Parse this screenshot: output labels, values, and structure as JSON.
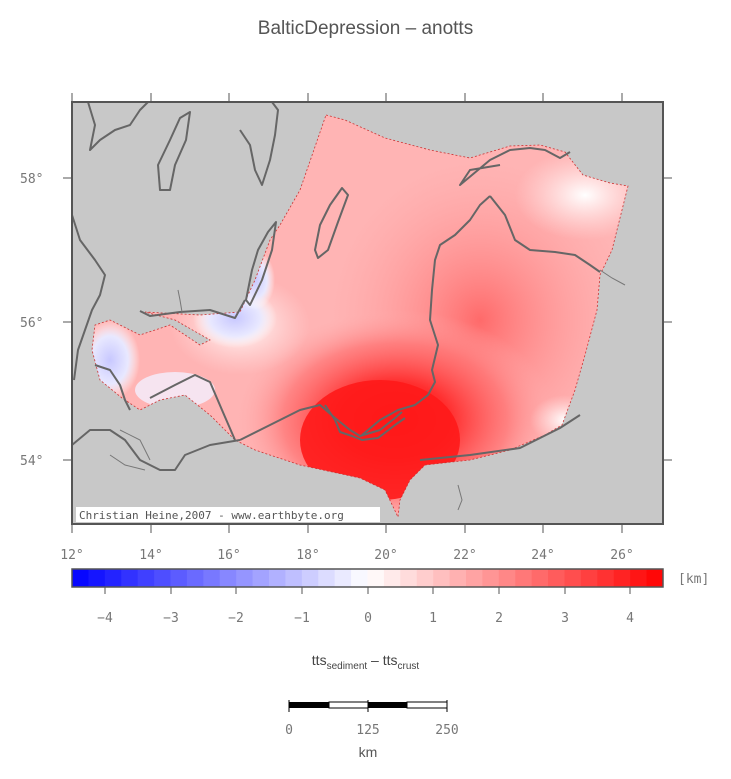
{
  "title": "BalticDepression – anotts",
  "map": {
    "lat_ticks": [
      "58°",
      "56°",
      "54°"
    ],
    "lon_ticks": [
      "12°",
      "14°",
      "16°",
      "18°",
      "20°",
      "22°",
      "24°",
      "26°"
    ],
    "credit": "Christian Heine,2007 - www.earthbyte.org",
    "land_color": "#c8c8c8",
    "coast_color": "#666666"
  },
  "colorbar": {
    "unit": "[km]",
    "ticks": [
      "−4",
      "−3",
      "−2",
      "−1",
      "0",
      "1",
      "2",
      "3",
      "4"
    ],
    "min_color": "#0000ff",
    "mid_color": "#ffffff",
    "max_color": "#ff0000"
  },
  "quantity": {
    "a": "tts",
    "a_sub": "sediment",
    "sep": " – ",
    "b": "tts",
    "b_sub": "crust"
  },
  "scalebar": {
    "labels": [
      "0",
      "125",
      "250"
    ],
    "unit": "km"
  }
}
